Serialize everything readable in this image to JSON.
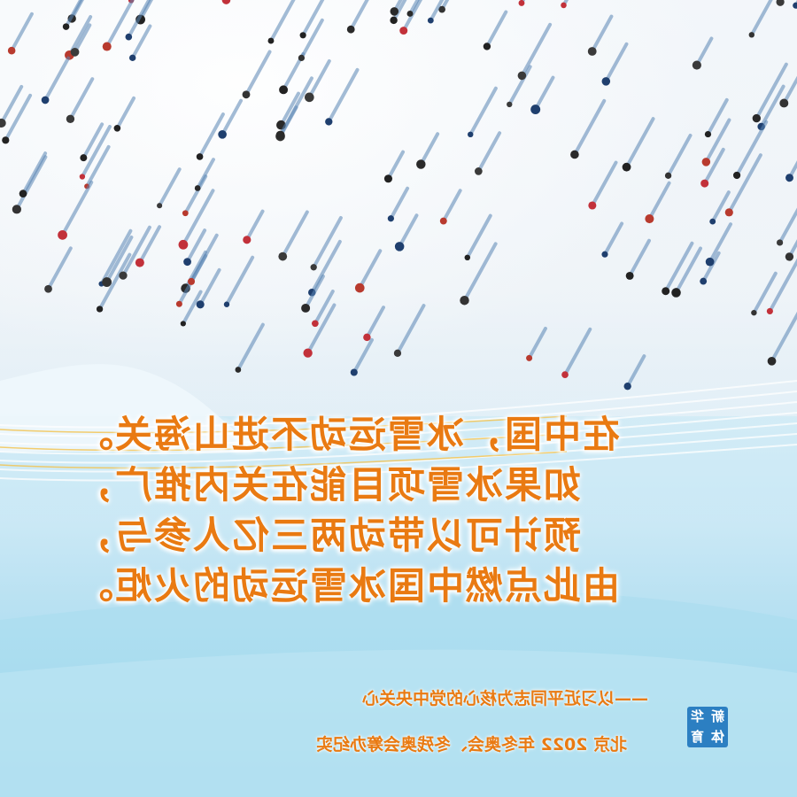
{
  "poster": {
    "main_lines": [
      "在中国，冰雪运动不进山海关。",
      "如果冰雪项目能在关内推广，",
      "预计可以带动两三亿人参与，",
      "由此点燃中国冰雪运动的火炬。"
    ],
    "caption_1": "——以习近平同志为核心的党中央关心",
    "caption_2": "北京 2022 年冬奥会、冬残奥会筹办纪实",
    "logo_chars": [
      "新",
      "华",
      "体",
      "育"
    ]
  },
  "colors": {
    "text_orange": "#e97a12",
    "logo_blue": "#2c7fc2",
    "sky_blue": "#9fd8ee"
  }
}
